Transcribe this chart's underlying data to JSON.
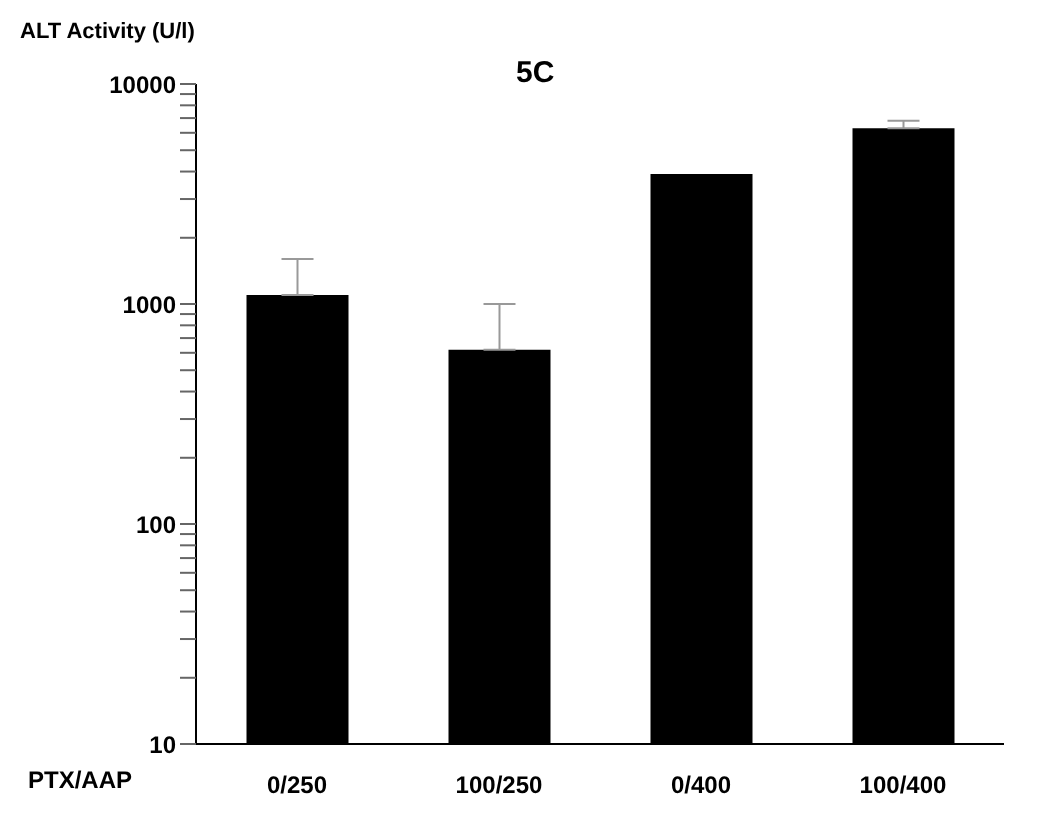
{
  "chart_data": {
    "type": "bar",
    "title": "5C",
    "ylabel": "ALT Activity (U/l)",
    "xlabel": "PTX/AAP",
    "categories": [
      "0/250",
      "100/250",
      "0/400",
      "100/400"
    ],
    "values": [
      1100,
      620,
      3900,
      6300
    ],
    "errors": [
      [
        1100,
        1600
      ],
      [
        620,
        1000
      ],
      null,
      [
        6300,
        6800
      ]
    ],
    "color": "#000000",
    "log": true,
    "ylim": [
      10,
      10000
    ],
    "yticks": [
      10,
      {
        "value": 20,
        "label": null
      },
      {
        "value": 30,
        "label": null
      },
      {
        "value": 40,
        "label": null
      },
      {
        "value": 50,
        "label": null
      },
      {
        "value": 60,
        "label": null
      },
      {
        "value": 70,
        "label": null
      },
      {
        "value": 80,
        "label": null
      },
      {
        "value": 90,
        "label": null
      },
      100,
      {
        "value": 200,
        "label": null
      },
      {
        "value": 300,
        "label": null
      },
      {
        "value": 400,
        "label": null
      },
      {
        "value": 500,
        "label": null
      },
      {
        "value": 600,
        "label": null
      },
      {
        "value": 700,
        "label": null
      },
      {
        "value": 800,
        "label": null
      },
      {
        "value": 900,
        "label": null
      },
      1000,
      {
        "value": 2000,
        "label": null
      },
      {
        "value": 3000,
        "label": null
      },
      {
        "value": 4000,
        "label": null
      },
      {
        "value": 5000,
        "label": null
      },
      {
        "value": 6000,
        "label": null
      },
      {
        "value": 7000,
        "label": null
      },
      {
        "value": 8000,
        "label": null
      },
      {
        "value": 9000,
        "label": null
      },
      10000
    ],
    "grid": false,
    "legend": false
  }
}
